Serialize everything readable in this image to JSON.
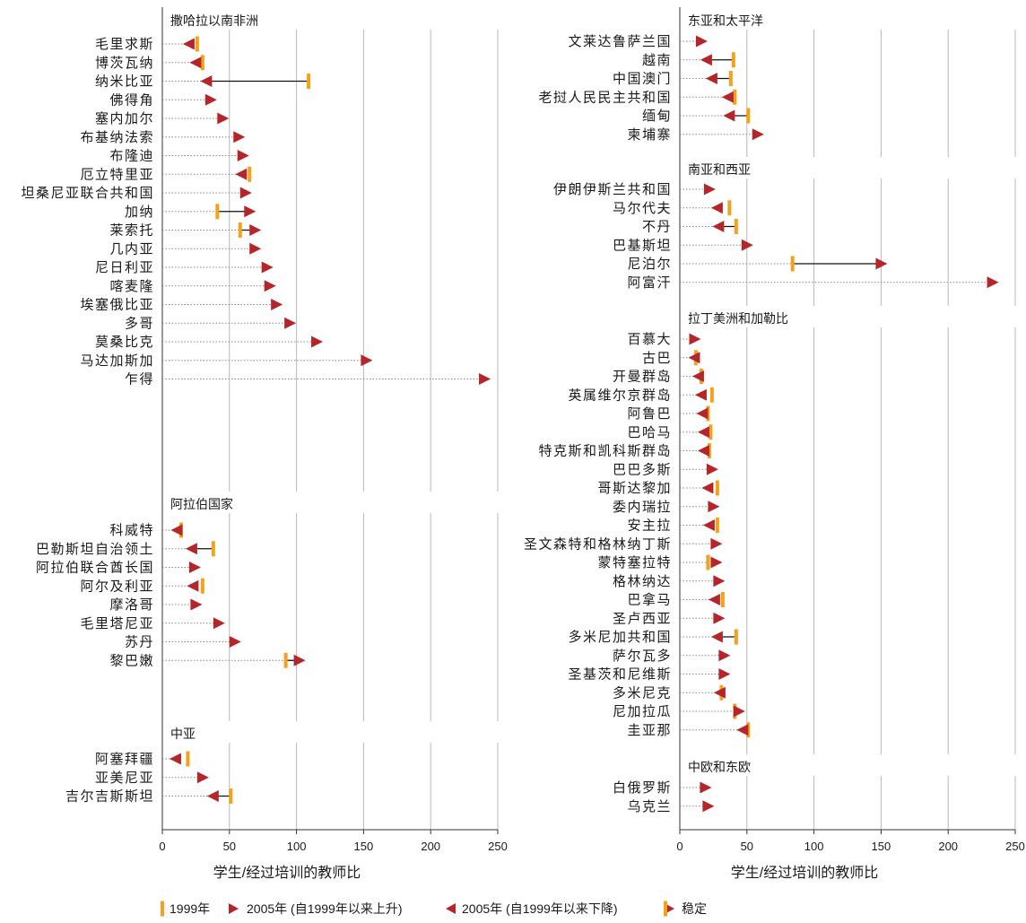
{
  "chart_data": {
    "type": "arrow-range",
    "axis_ticks": [
      "0",
      "50",
      "100",
      "150",
      "200",
      "250"
    ],
    "xlim": [
      0,
      250
    ],
    "legend": {
      "y1999": "1999年",
      "rise": "2005年 (自1999年以来上升)",
      "fall": "2005年 (自1999年以来下降)",
      "stable": "稳定"
    },
    "panels": [
      {
        "xlabel": "学生/经过培训的教师比",
        "groups": [
          {
            "title": "撒哈拉以南非洲",
            "rows": [
              {
                "label": "毛里求斯",
                "v1999": 26,
                "v2005": 20
              },
              {
                "label": "博茨瓦纳",
                "v1999": 30,
                "v2005": 25
              },
              {
                "label": "纳米比亚",
                "v1999": 109,
                "v2005": 33
              },
              {
                "label": "佛得角",
                "v1999": null,
                "v2005": 36
              },
              {
                "label": "塞内加尔",
                "v1999": null,
                "v2005": 45
              },
              {
                "label": "布基纳法索",
                "v1999": null,
                "v2005": 57
              },
              {
                "label": "布隆迪",
                "v1999": null,
                "v2005": 60
              },
              {
                "label": "厄立特里亚",
                "v1999": 65,
                "v2005": 59
              },
              {
                "label": "坦桑尼亚联合共和国",
                "v1999": null,
                "v2005": 62
              },
              {
                "label": "加纳",
                "v1999": 41,
                "v2005": 65
              },
              {
                "label": "莱索托",
                "v1999": 58,
                "v2005": 69
              },
              {
                "label": "几内亚",
                "v1999": null,
                "v2005": 69
              },
              {
                "label": "尼日利亚",
                "v1999": null,
                "v2005": 78
              },
              {
                "label": "喀麦隆",
                "v1999": null,
                "v2005": 80
              },
              {
                "label": "埃塞俄比亚",
                "v1999": null,
                "v2005": 85
              },
              {
                "label": "多哥",
                "v1999": null,
                "v2005": 95
              },
              {
                "label": "莫桑比克",
                "v1999": null,
                "v2005": 115
              },
              {
                "label": "马达加斯加",
                "v1999": null,
                "v2005": 152
              },
              {
                "label": "乍得",
                "v1999": null,
                "v2005": 240
              }
            ]
          },
          {
            "title": "阿拉伯国家",
            "rows": [
              {
                "label": "科威特",
                "v1999": 14,
                "v2005": 11
              },
              {
                "label": "巴勒斯坦自治领土",
                "v1999": 38,
                "v2005": 22
              },
              {
                "label": "阿拉伯联合酋长国",
                "v1999": null,
                "v2005": 24
              },
              {
                "label": "阿尔及利亚",
                "v1999": 30,
                "v2005": 23
              },
              {
                "label": "摩洛哥",
                "v1999": null,
                "v2005": 25
              },
              {
                "label": "毛里塔尼亚",
                "v1999": null,
                "v2005": 42
              },
              {
                "label": "苏丹",
                "v1999": null,
                "v2005": 54
              },
              {
                "label": "黎巴嫩",
                "v1999": 92,
                "v2005": 102
              }
            ]
          },
          {
            "title": "中亚",
            "rows": [
              {
                "label": "阿塞拜疆",
                "v1999": 19,
                "v2005": 10
              },
              {
                "label": "亚美尼亚",
                "v1999": null,
                "v2005": 30
              },
              {
                "label": "吉尔吉斯斯坦",
                "v1999": 51,
                "v2005": 38
              }
            ]
          }
        ]
      },
      {
        "xlabel": "学生/经过培训的教师比",
        "groups": [
          {
            "title": "东亚和太平洋",
            "rows": [
              {
                "label": "文莱达鲁萨兰国",
                "v1999": null,
                "v2005": 16
              },
              {
                "label": "越南",
                "v1999": 40,
                "v2005": 20
              },
              {
                "label": "中国澳门",
                "v1999": 38,
                "v2005": 24
              },
              {
                "label": "老挝人民民主共和国",
                "v1999": 41,
                "v2005": 36
              },
              {
                "label": "缅甸",
                "v1999": 51,
                "v2005": 37
              },
              {
                "label": "柬埔寨",
                "v1999": null,
                "v2005": 58
              }
            ]
          },
          {
            "title": "南亚和西亚",
            "rows": [
              {
                "label": "伊朗伊斯兰共和国",
                "v1999": null,
                "v2005": 22
              },
              {
                "label": "马尔代夫",
                "v1999": 37,
                "v2005": 28
              },
              {
                "label": "不丹",
                "v1999": 42,
                "v2005": 29
              },
              {
                "label": "巴基斯坦",
                "v1999": null,
                "v2005": 50
              },
              {
                "label": "尼泊尔",
                "v1999": 84,
                "v2005": 150
              },
              {
                "label": "阿富汗",
                "v1999": null,
                "v2005": 233
              }
            ]
          },
          {
            "title": "拉丁美洲和加勒比",
            "rows": [
              {
                "label": "百慕大",
                "v1999": null,
                "v2005": 11
              },
              {
                "label": "古巴",
                "v1999": 12,
                "v2005": 11
              },
              {
                "label": "开曼群岛",
                "v1999": 16,
                "v2005": 14
              },
              {
                "label": "英属维尔京群岛",
                "v1999": 24,
                "v2005": 16
              },
              {
                "label": "阿鲁巴",
                "v1999": 21,
                "v2005": 17
              },
              {
                "label": "巴哈马",
                "v1999": 23,
                "v2005": 18
              },
              {
                "label": "特克斯和凯科斯群岛",
                "v1999": 22,
                "v2005": 18
              },
              {
                "label": "巴巴多斯",
                "v1999": null,
                "v2005": 24
              },
              {
                "label": "哥斯达黎加",
                "v1999": 28,
                "v2005": 21
              },
              {
                "label": "委内瑞拉",
                "v1999": null,
                "v2005": 25
              },
              {
                "label": "安主拉",
                "v1999": 28,
                "v2005": 22
              },
              {
                "label": "圣文森特和格林纳丁斯",
                "v1999": null,
                "v2005": 27
              },
              {
                "label": "蒙特塞拉特",
                "v1999": 21,
                "v2005": 27
              },
              {
                "label": "格林纳达",
                "v1999": null,
                "v2005": 29
              },
              {
                "label": "巴拿马",
                "v1999": 32,
                "v2005": 26
              },
              {
                "label": "圣卢西亚",
                "v1999": null,
                "v2005": 29
              },
              {
                "label": "多米尼加共和国",
                "v1999": 42,
                "v2005": 28
              },
              {
                "label": "萨尔瓦多",
                "v1999": null,
                "v2005": 33
              },
              {
                "label": "圣基茨和尼维斯",
                "v1999": null,
                "v2005": 33
              },
              {
                "label": "多米尼克",
                "v1999": 31,
                "v2005": 30
              },
              {
                "label": "尼加拉瓜",
                "v1999": 41,
                "v2005": 44
              },
              {
                "label": "圭亚那",
                "v1999": 51,
                "v2005": 47
              }
            ]
          },
          {
            "title": "中欧和东欧",
            "rows": [
              {
                "label": "白俄罗斯",
                "v1999": null,
                "v2005": 19
              },
              {
                "label": "乌克兰",
                "v1999": null,
                "v2005": 21
              }
            ]
          }
        ]
      }
    ]
  },
  "colors": {
    "orange": "#f2a31b",
    "red": "#b5262a",
    "grid": "#aaaaaa",
    "dotted": "#888888",
    "text": "#1a1a1a"
  }
}
